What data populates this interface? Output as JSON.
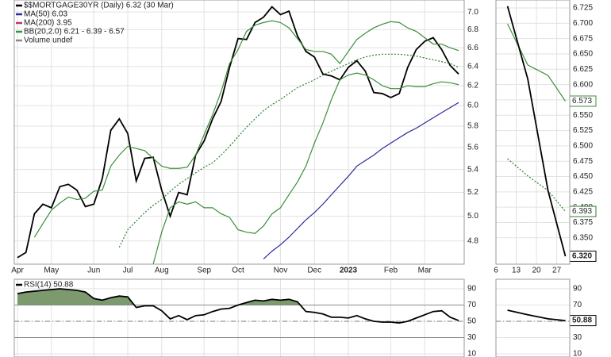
{
  "chart_data": [
    {
      "type": "line",
      "log_scale": true,
      "grid": true,
      "legend": "upper left",
      "categories": [
        "Apr",
        null,
        null,
        null,
        "May",
        null,
        null,
        null,
        null,
        "Jun",
        null,
        null,
        null,
        "Jul",
        null,
        null,
        null,
        "Aug",
        null,
        null,
        null,
        null,
        "Sep",
        null,
        null,
        null,
        "Oct",
        null,
        null,
        null,
        null,
        "Nov",
        null,
        null,
        null,
        "Dec",
        null,
        null,
        null,
        "2023",
        null,
        null,
        null,
        null,
        "Feb",
        null,
        null,
        null,
        "Mar",
        null,
        null,
        null,
        null
      ],
      "ylim": [
        4.62,
        7.14
      ],
      "yticks": [
        4.8,
        {
          "value": 5,
          "label": "5.0"
        },
        5.2,
        5.4,
        5.6,
        5.8,
        {
          "value": 6,
          "label": "6.0"
        },
        6.2,
        6.4,
        6.6,
        6.8,
        {
          "value": 7,
          "label": "7.0"
        }
      ],
      "series": [
        {
          "name": "$$MORTGAGE30YR (Daily) 6.32 (30 Mar)",
          "color": "#000000",
          "values": [
            4.67,
            4.71,
            5.02,
            5.1,
            5.07,
            5.25,
            5.27,
            5.22,
            5.08,
            5.1,
            5.32,
            5.76,
            5.87,
            5.73,
            5.3,
            5.5,
            5.51,
            5.22,
            5.0,
            5.2,
            5.18,
            5.53,
            5.66,
            5.87,
            6.04,
            6.39,
            6.7,
            6.69,
            6.88,
            6.94,
            7.06,
            6.97,
            7.01,
            6.73,
            6.56,
            6.5,
            6.32,
            6.3,
            6.26,
            6.39,
            6.46,
            6.35,
            6.13,
            6.12,
            6.08,
            6.12,
            6.39,
            6.58,
            6.67,
            6.71,
            6.58,
            6.41,
            6.32
          ]
        },
        {
          "name": "MA(50) 6.03",
          "color": "#2a2a9a",
          "values": [
            null,
            null,
            null,
            null,
            null,
            null,
            null,
            null,
            null,
            null,
            null,
            null,
            null,
            null,
            null,
            null,
            null,
            null,
            null,
            null,
            null,
            null,
            null,
            null,
            null,
            null,
            null,
            null,
            null,
            4.66,
            4.72,
            4.77,
            4.83,
            4.9,
            4.97,
            5.03,
            5.1,
            5.18,
            5.26,
            5.34,
            5.43,
            5.48,
            5.53,
            5.59,
            5.64,
            5.69,
            5.74,
            5.78,
            5.83,
            5.88,
            5.93,
            5.98,
            6.03
          ]
        },
        {
          "name": "MA(200) 3.95",
          "color": "#c0306a"
        },
        {
          "name": "BB(20,2.0) 6.21 - 6.39 - 6.57",
          "color": "#3a8f3a",
          "upper": [
            null,
            null,
            4.83,
            4.94,
            5.05,
            5.11,
            5.16,
            5.14,
            5.15,
            5.21,
            5.22,
            5.43,
            5.53,
            5.61,
            5.59,
            5.57,
            5.5,
            5.43,
            5.41,
            5.41,
            5.42,
            5.53,
            5.72,
            5.91,
            6.14,
            6.43,
            6.58,
            6.78,
            6.85,
            6.88,
            6.9,
            6.88,
            6.82,
            6.7,
            6.58,
            6.56,
            6.56,
            6.53,
            6.43,
            6.56,
            6.69,
            6.76,
            6.82,
            6.86,
            6.89,
            6.88,
            6.82,
            6.78,
            6.71,
            6.64,
            6.64,
            6.6,
            6.57
          ],
          "middle": [
            null,
            null,
            null,
            null,
            null,
            null,
            null,
            null,
            null,
            null,
            null,
            null,
            4.75,
            4.89,
            4.96,
            5.03,
            5.09,
            5.14,
            5.21,
            5.27,
            5.32,
            5.37,
            5.42,
            5.46,
            5.53,
            5.61,
            5.7,
            5.79,
            5.87,
            5.95,
            6.01,
            6.06,
            6.12,
            6.18,
            6.22,
            6.26,
            6.31,
            6.35,
            6.39,
            6.43,
            6.47,
            6.5,
            6.52,
            6.53,
            6.53,
            6.53,
            6.52,
            6.51,
            6.49,
            6.47,
            6.45,
            6.43,
            6.39
          ],
          "lower": [
            null,
            null,
            null,
            null,
            null,
            null,
            null,
            null,
            null,
            null,
            null,
            null,
            null,
            null,
            null,
            null,
            4.62,
            4.87,
            5.07,
            5.12,
            5.1,
            5.12,
            5.07,
            5.07,
            5.02,
            4.99,
            4.89,
            4.87,
            4.86,
            4.92,
            5.02,
            5.07,
            5.18,
            5.29,
            5.43,
            5.64,
            5.83,
            6.06,
            6.26,
            6.31,
            6.33,
            6.31,
            6.26,
            6.2,
            6.17,
            6.17,
            6.2,
            6.19,
            6.19,
            6.22,
            6.24,
            6.23,
            6.21
          ]
        },
        {
          "name": "Volume undef",
          "color": "#888888"
        }
      ]
    },
    {
      "type": "line",
      "grid": true,
      "x": [
        10,
        17,
        24,
        30
      ],
      "xlim": [
        6,
        31.5
      ],
      "xticks": [
        6,
        13,
        20,
        27
      ],
      "ylim": [
        6.307,
        6.738
      ],
      "yticks": [
        {
          "value": 6.35,
          "label": "6.350"
        },
        6.375,
        {
          "value": 6.4,
          "label": "6.400"
        },
        6.425,
        {
          "value": 6.45,
          "label": "6.450"
        },
        6.475,
        {
          "value": 6.5,
          "label": "6.500"
        },
        6.525,
        {
          "value": 6.55,
          "label": "6.550"
        },
        6.575,
        {
          "value": 6.6,
          "label": "6.600"
        },
        6.625,
        {
          "value": 6.65,
          "label": "6.650"
        },
        6.675,
        {
          "value": 6.7,
          "label": "6.700"
        },
        6.725
      ],
      "series": [
        {
          "color": "#3a8f3a",
          "end_label": true,
          "values": [
            6.699,
            6.632,
            6.615,
            6.573
          ]
        },
        {
          "color": "#2e7d2e",
          "dash": true,
          "end_label": true,
          "values": [
            6.479,
            6.451,
            6.427,
            6.393
          ]
        },
        {
          "color": "#000000",
          "end_label": true,
          "values": [
            6.728,
            6.609,
            6.427,
            6.32
          ],
          "value_labels": [
            null,
            null,
            null,
            "6.320"
          ]
        }
      ]
    },
    {
      "type": "line",
      "grid": true,
      "fill_above": 70,
      "centerline": 50,
      "ylim": [
        6.1,
        101.7
      ],
      "yticks": [
        10,
        30,
        50,
        70,
        90
      ],
      "series": [
        {
          "name": "RSI(14) 50.88",
          "color": "#000000",
          "fill": "#6f8f5f",
          "values": [
            84,
            86,
            87,
            88,
            89,
            90,
            89,
            88,
            86,
            78,
            76,
            79,
            81,
            80,
            67,
            69,
            69,
            63,
            53,
            57,
            52,
            57,
            58,
            62,
            65,
            66,
            70,
            73,
            76,
            75,
            77,
            76,
            77,
            74,
            62,
            61,
            59,
            55,
            55,
            54,
            57,
            53,
            50,
            49,
            49,
            48,
            50,
            54,
            58,
            62,
            63,
            55,
            50.88
          ]
        }
      ]
    },
    {
      "type": "line",
      "grid": true,
      "centerline": 50,
      "x": [
        10,
        17,
        24,
        30
      ],
      "xlim": [
        6,
        31.5
      ],
      "ylim": [
        6.1,
        101.7
      ],
      "yticks": [
        10,
        30,
        50,
        70,
        90
      ],
      "series": [
        {
          "color": "#000000",
          "end_label": true,
          "values": [
            63.7,
            58,
            53,
            50.88
          ]
        }
      ]
    }
  ]
}
